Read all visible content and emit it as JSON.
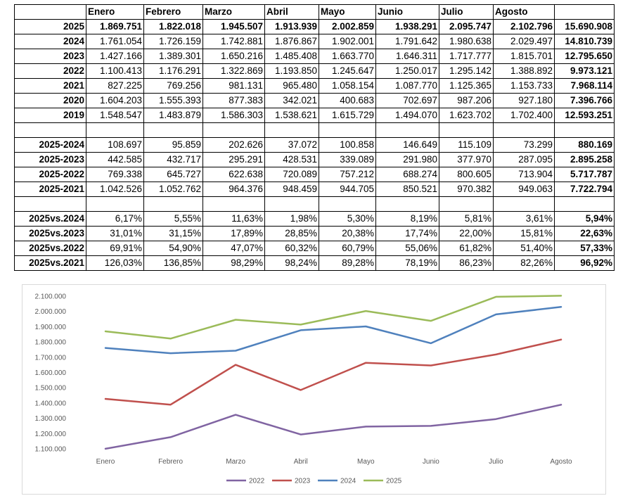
{
  "table": {
    "header": [
      "",
      "Enero",
      "Febrero",
      "Marzo",
      "Abril",
      "Mayo",
      "Junio",
      "Julio",
      "Agosto",
      ""
    ],
    "groups": [
      {
        "bold_values": [
          true,
          false,
          false,
          false,
          false,
          false,
          false
        ],
        "rows": [
          {
            "label": "2025",
            "values": [
              "1.869.751",
              "1.822.018",
              "1.945.507",
              "1.913.939",
              "2.002.859",
              "1.938.291",
              "2.095.747",
              "2.102.796"
            ],
            "total": "15.690.908"
          },
          {
            "label": "2024",
            "values": [
              "1.761.054",
              "1.726.159",
              "1.742.881",
              "1.876.867",
              "1.902.001",
              "1.791.642",
              "1.980.638",
              "2.029.497"
            ],
            "total": "14.810.739"
          },
          {
            "label": "2023",
            "values": [
              "1.427.166",
              "1.389.301",
              "1.650.216",
              "1.485.408",
              "1.663.770",
              "1.646.311",
              "1.717.777",
              "1.815.701"
            ],
            "total": "12.795.650"
          },
          {
            "label": "2022",
            "values": [
              "1.100.413",
              "1.176.291",
              "1.322.869",
              "1.193.850",
              "1.245.647",
              "1.250.017",
              "1.295.142",
              "1.388.892"
            ],
            "total": "9.973.121"
          },
          {
            "label": "2021",
            "values": [
              "827.225",
              "769.256",
              "981.131",
              "965.480",
              "1.058.154",
              "1.087.770",
              "1.125.365",
              "1.153.733"
            ],
            "total": "7.968.114"
          },
          {
            "label": "2020",
            "values": [
              "1.604.203",
              "1.555.393",
              "877.383",
              "342.021",
              "400.683",
              "702.697",
              "987.206",
              "927.180"
            ],
            "total": "7.396.766"
          },
          {
            "label": "2019",
            "values": [
              "1.548.547",
              "1.483.879",
              "1.586.303",
              "1.538.621",
              "1.615.729",
              "1.494.070",
              "1.623.702",
              "1.702.400"
            ],
            "total": "12.593.251"
          }
        ]
      },
      {
        "rows": [
          {
            "label": "2025-2024",
            "values": [
              "108.697",
              "95.859",
              "202.626",
              "37.072",
              "100.858",
              "146.649",
              "115.109",
              "73.299"
            ],
            "total": "880.169"
          },
          {
            "label": "2025-2023",
            "values": [
              "442.585",
              "432.717",
              "295.291",
              "428.531",
              "339.089",
              "291.980",
              "377.970",
              "287.095"
            ],
            "total": "2.895.258"
          },
          {
            "label": "2025-2022",
            "values": [
              "769.338",
              "645.727",
              "622.638",
              "720.089",
              "757.212",
              "688.274",
              "800.605",
              "713.904"
            ],
            "total": "5.717.787"
          },
          {
            "label": "2025-2021",
            "values": [
              "1.042.526",
              "1.052.762",
              "964.376",
              "948.459",
              "944.705",
              "850.521",
              "970.382",
              "949.063"
            ],
            "total": "7.722.794"
          }
        ]
      },
      {
        "rows": [
          {
            "label": "2025vs.2024",
            "values": [
              "6,17%",
              "5,55%",
              "11,63%",
              "1,98%",
              "5,30%",
              "8,19%",
              "5,81%",
              "3,61%"
            ],
            "total": "5,94%"
          },
          {
            "label": "2025vs.2023",
            "values": [
              "31,01%",
              "31,15%",
              "17,89%",
              "28,85%",
              "20,38%",
              "17,74%",
              "22,00%",
              "15,81%"
            ],
            "total": "22,63%"
          },
          {
            "label": "2025vs.2022",
            "values": [
              "69,91%",
              "54,90%",
              "47,07%",
              "60,32%",
              "60,79%",
              "55,06%",
              "61,82%",
              "51,40%"
            ],
            "total": "57,33%"
          },
          {
            "label": "2025vs.2021",
            "values": [
              "126,03%",
              "136,85%",
              "98,29%",
              "98,24%",
              "89,28%",
              "78,19%",
              "86,23%",
              "82,26%"
            ],
            "total": "96,92%"
          }
        ]
      }
    ]
  },
  "chart_data": {
    "type": "line",
    "categories": [
      "Enero",
      "Febrero",
      "Marzo",
      "Abril",
      "Mayo",
      "Junio",
      "Julio",
      "Agosto"
    ],
    "series": [
      {
        "name": "2022",
        "color": "#8064a2",
        "values": [
          1100413,
          1176291,
          1322869,
          1193850,
          1245647,
          1250017,
          1295142,
          1388892
        ]
      },
      {
        "name": "2023",
        "color": "#c0504d",
        "values": [
          1427166,
          1389301,
          1650216,
          1485408,
          1663770,
          1646311,
          1717777,
          1815701
        ]
      },
      {
        "name": "2024",
        "color": "#4f81bd",
        "values": [
          1761054,
          1726159,
          1742881,
          1876867,
          1902001,
          1791642,
          1980638,
          2029497
        ]
      },
      {
        "name": "2025",
        "color": "#9bbb59",
        "values": [
          1869751,
          1822018,
          1945507,
          1913939,
          2002859,
          1938291,
          2095747,
          2102796
        ]
      }
    ],
    "y_ticks": [
      "1.100.000",
      "1.200.000",
      "1.300.000",
      "1.400.000",
      "1.500.000",
      "1.600.000",
      "1.700.000",
      "1.800.000",
      "1.900.000",
      "2.000.000",
      "2.100.000"
    ],
    "ylim": [
      1100000,
      2100000
    ],
    "grid": false,
    "legend_position": "bottom"
  }
}
